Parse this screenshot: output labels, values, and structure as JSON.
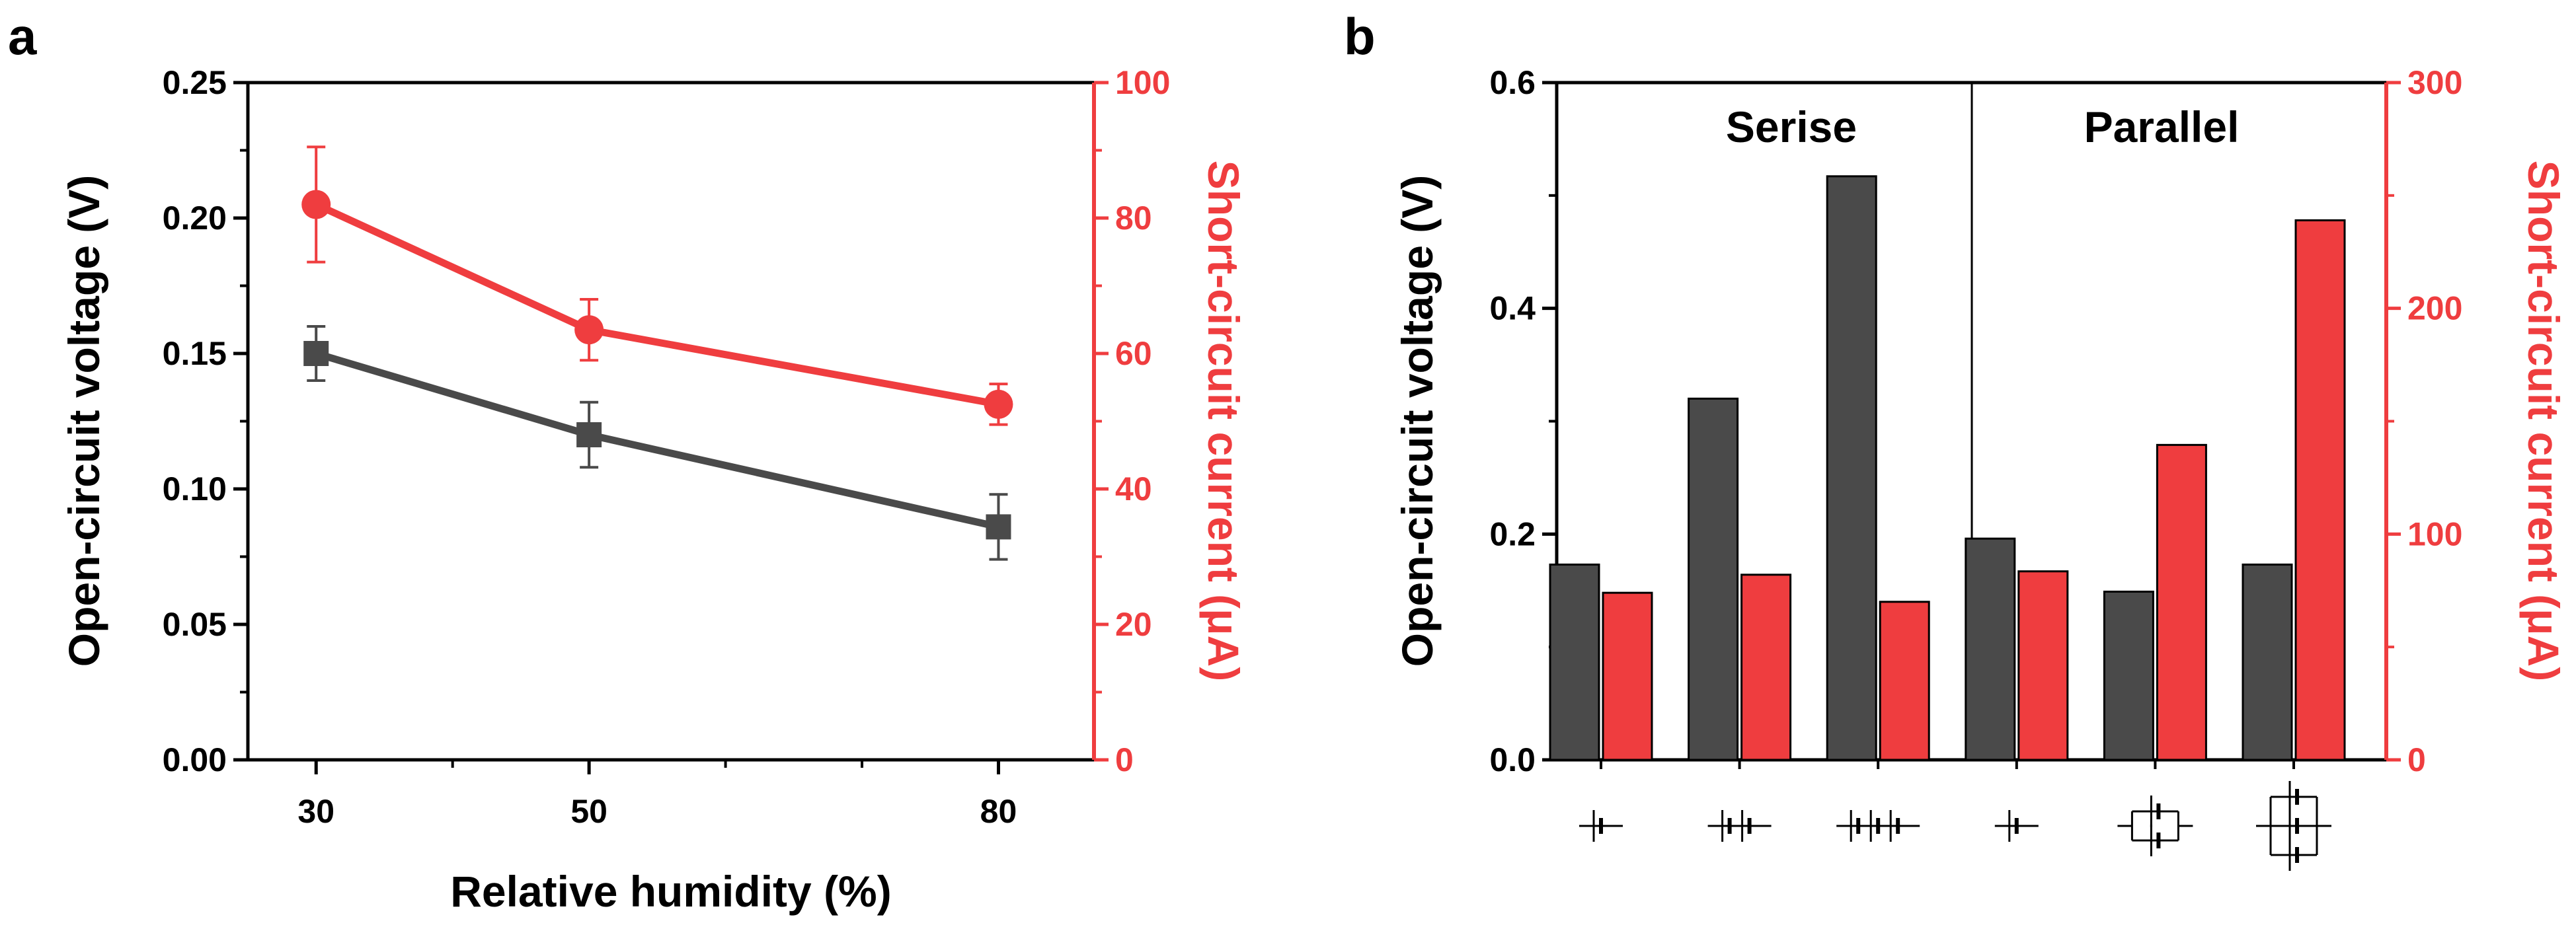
{
  "colors": {
    "black_series": "#4a4a4a",
    "red_series": "#ef3d3f",
    "axis_black": "#000000",
    "axis_red": "#ef3d3f"
  },
  "chart_data": [
    {
      "panel": "a",
      "type": "line",
      "xlabel": "Relative humidity (%)",
      "ylabel_left": "Open-circuit voltage (V)",
      "ylabel_right": "Short-circuit current (μA)",
      "xlim": [
        25,
        87
      ],
      "x_ticks": [
        30,
        50,
        80
      ],
      "x_tick_labels": [
        "30",
        "50",
        "80"
      ],
      "x_minor_ticks": [
        40,
        60,
        70
      ],
      "ylim_left": [
        0,
        0.25
      ],
      "y_ticks_left": [
        0,
        0.05,
        0.1,
        0.15,
        0.2,
        0.25
      ],
      "y_tick_labels_left": [
        "0.00",
        "0.05",
        "0.10",
        "0.15",
        "0.20",
        "0.25"
      ],
      "ylim_right": [
        0,
        100
      ],
      "y_ticks_right": [
        0,
        20,
        40,
        60,
        80,
        100
      ],
      "y_tick_labels_right": [
        "0",
        "20",
        "40",
        "60",
        "80",
        "100"
      ],
      "series": [
        {
          "name": "Open-circuit voltage",
          "axis": "left",
          "marker": "square",
          "color": "#4a4a4a",
          "x": [
            30,
            50,
            80
          ],
          "values": [
            0.15,
            0.12,
            0.086
          ],
          "errors": [
            0.01,
            0.012,
            0.012
          ]
        },
        {
          "name": "Short-circuit current",
          "axis": "right",
          "marker": "circle",
          "color": "#ef3d3f",
          "x": [
            30,
            50,
            80
          ],
          "values": [
            82,
            63.5,
            52.5
          ],
          "errors": [
            8.5,
            4.5,
            3
          ]
        }
      ]
    },
    {
      "panel": "b",
      "type": "bar",
      "ylabel_left": "Open-circuit voltage (V)",
      "ylabel_right": "Short-circuit current (μA)",
      "groups": [
        "Serise",
        "Parallel"
      ],
      "categories": [
        "1 cell (series)",
        "2 cells in series",
        "3 cells in series",
        "1 cell (parallel)",
        "2 cells in parallel",
        "3 cells in parallel"
      ],
      "ylim_left": [
        0,
        0.6
      ],
      "y_ticks_left": [
        0,
        0.2,
        0.4,
        0.6
      ],
      "y_tick_labels_left": [
        "0.0",
        "0.2",
        "0.4",
        "0.6"
      ],
      "ylim_right": [
        0,
        300
      ],
      "y_ticks_right": [
        0,
        100,
        200,
        300
      ],
      "y_tick_labels_right": [
        "0",
        "100",
        "200",
        "300"
      ],
      "series": [
        {
          "name": "Open-circuit voltage",
          "axis": "left",
          "color": "#4a4a4a",
          "values": [
            0.173,
            0.32,
            0.517,
            0.196,
            0.149,
            0.173
          ]
        },
        {
          "name": "Short-circuit current",
          "axis": "right",
          "color": "#ef3d3f",
          "values": [
            74,
            82,
            70,
            83.5,
            139.5,
            239
          ]
        }
      ]
    }
  ]
}
